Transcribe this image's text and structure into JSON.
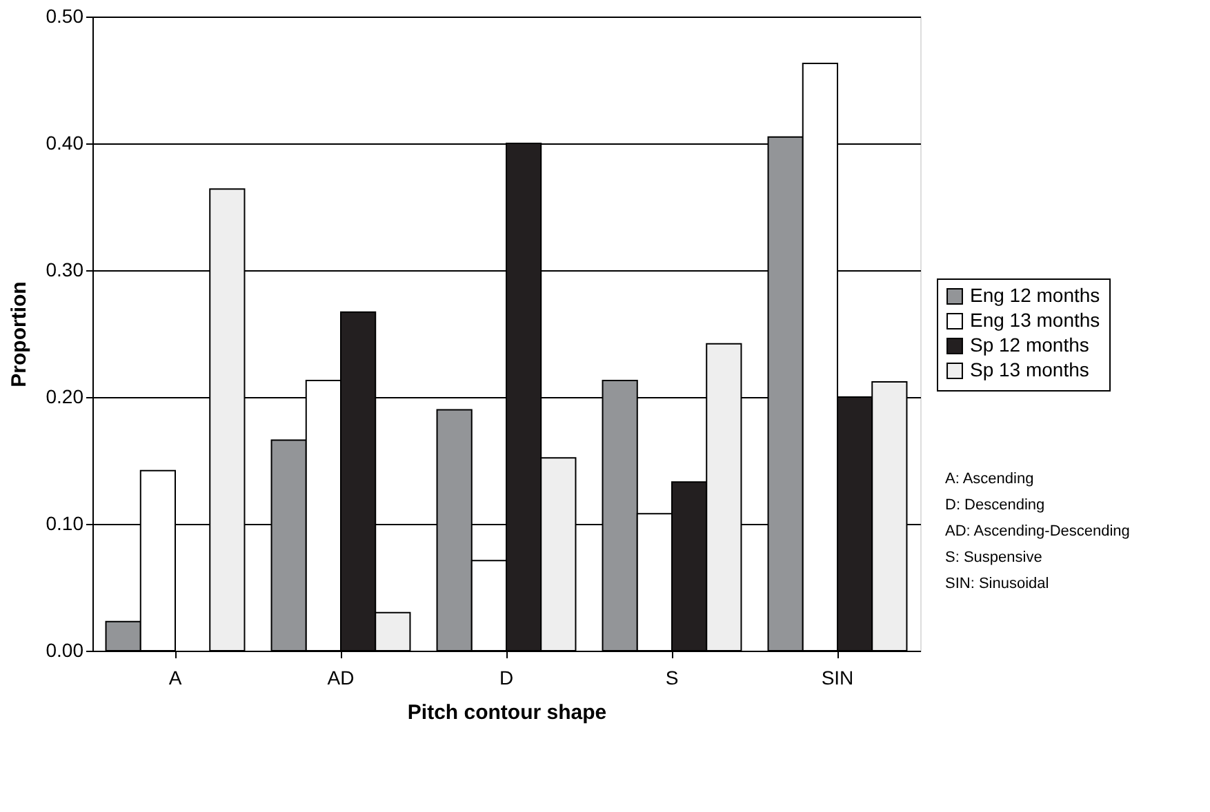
{
  "chart_data": {
    "type": "bar",
    "xlabel": "Pitch contour shape",
    "ylabel": "Proportion",
    "categories": [
      "A",
      "AD",
      "D",
      "S",
      "SIN"
    ],
    "series": [
      {
        "name": "Eng 12 months",
        "color": "#939598",
        "values": [
          0.023,
          0.166,
          0.19,
          0.213,
          0.405
        ]
      },
      {
        "name": "Eng 13 months",
        "color": "#ffffff",
        "values": [
          0.142,
          0.213,
          0.071,
          0.108,
          0.463
        ]
      },
      {
        "name": "Sp 12 months",
        "color": "#231f20",
        "values": [
          0,
          0.267,
          0.4,
          0.133,
          0.2
        ]
      },
      {
        "name": "Sp 13 months",
        "color": "#eeeeee",
        "values": [
          0.364,
          0.03,
          0.152,
          0.242,
          0.212
        ]
      }
    ],
    "ylim": [
      0,
      0.5
    ],
    "yticks": [
      {
        "value": 0,
        "label": "0.00"
      },
      {
        "value": 0.1,
        "label": "0.10"
      },
      {
        "value": 0.2,
        "label": "0.20"
      },
      {
        "value": 0.3,
        "label": "0.30"
      },
      {
        "value": 0.4,
        "label": "0.40"
      },
      {
        "value": 0.5,
        "label": "0.50"
      }
    ],
    "grid": "y",
    "legend": "right",
    "annotations": [
      "A: Ascending",
      "D: Descending",
      "AD: Ascending-Descending",
      "S: Suspensive",
      "SIN: Sinusoidal"
    ]
  }
}
